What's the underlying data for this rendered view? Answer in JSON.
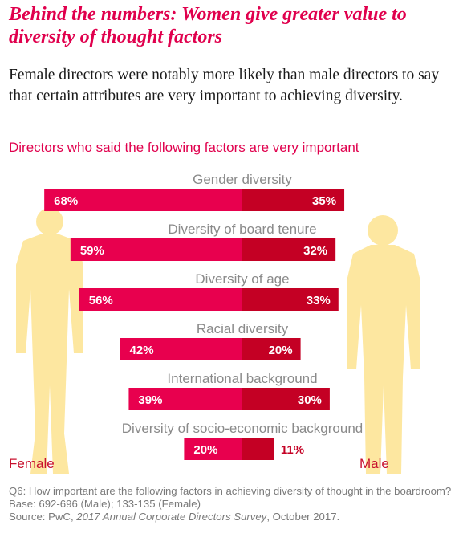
{
  "header": {
    "title": "Behind the numbers: Women give greater value to diversity of thought factors",
    "intro": "Female directors were notably more likely than male directors to say that certain attributes are very important to achieving diversity."
  },
  "chart_data": {
    "type": "bar",
    "title": "Directors who said the following factors are very important",
    "layout": "diverging-horizontal",
    "categories": [
      "Gender diversity",
      "Diversity of board tenure",
      "Diversity of age",
      "Racial diversity",
      "International background",
      "Diversity of socio-economic background"
    ],
    "series": [
      {
        "name": "Female",
        "values": [
          68,
          59,
          56,
          42,
          39,
          20
        ],
        "labels": [
          "68%",
          "59%",
          "56%",
          "42%",
          "39%",
          "20%"
        ]
      },
      {
        "name": "Male",
        "values": [
          35,
          32,
          33,
          20,
          30,
          11
        ],
        "labels": [
          "35%",
          "32%",
          "33%",
          "20%",
          "30%",
          "11%"
        ]
      }
    ],
    "value_unit": "%",
    "colors": {
      "female": "#e8004e",
      "male": "#c40024",
      "label_text": "#ffffff",
      "outside_label_text": "#c40024",
      "category_text": "#8a8a8a",
      "silhouette": "#fde7a0"
    }
  },
  "footnote": {
    "question": "Q6: How important are the following factors in achieving diversity of thought in the boardroom?",
    "base": "Base: 692-696 (Male); 133-135 (Female)",
    "source_prefix": "Source: PwC, ",
    "source_title": "2017 Annual Corporate Directors Survey",
    "source_suffix": ", October 2017."
  },
  "icons": [
    "female-silhouette-icon",
    "male-silhouette-icon"
  ]
}
